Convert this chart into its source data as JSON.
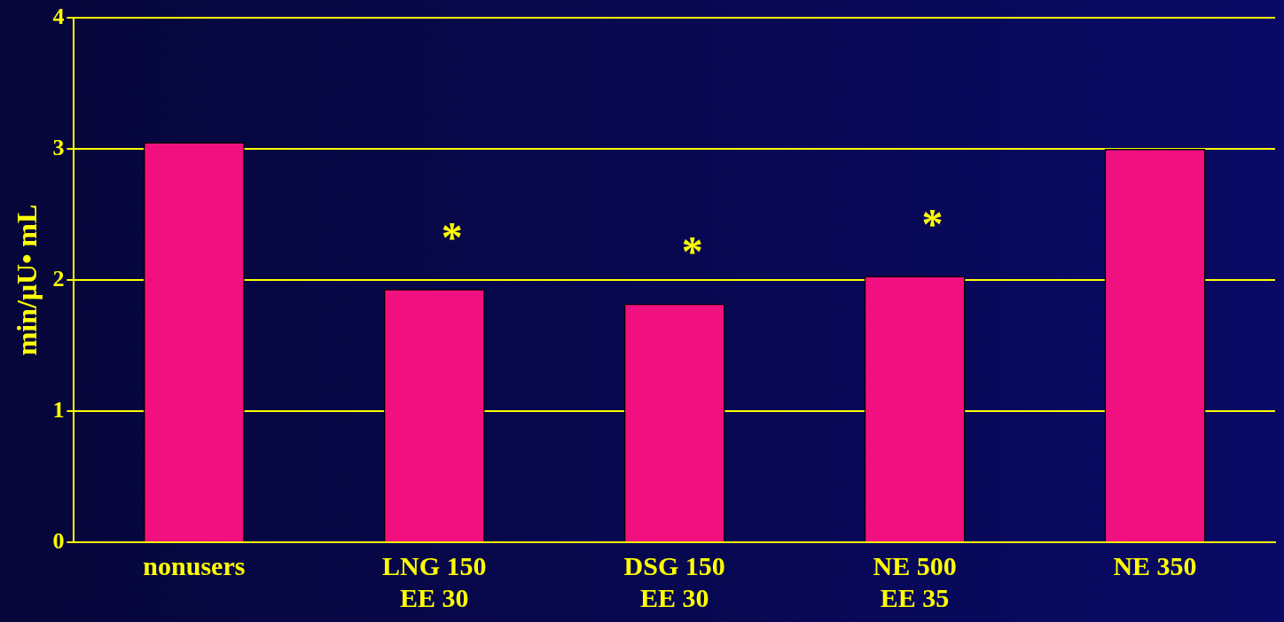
{
  "chart_data": {
    "type": "bar",
    "ylabel": "min/μU• mL",
    "categories": [
      "nonusers",
      "LNG 150\nEE 30",
      "DSG 150\nEE 30",
      "NE 500\nEE 35",
      "NE 350"
    ],
    "values": [
      3.05,
      1.93,
      1.82,
      2.03,
      3.0
    ],
    "color": "#f0107f",
    "ylim": [
      0,
      4
    ],
    "yticks": [
      0,
      1,
      2,
      3,
      4
    ],
    "grid": "y",
    "legend": false,
    "annotations": [
      {
        "text": "*",
        "x": "LNG 150\nEE 30",
        "y": 1.93
      },
      {
        "text": "*",
        "x": "DSG 150\nEE 30",
        "y": 1.82
      },
      {
        "text": "*",
        "x": "NE 500\nEE 35",
        "y": 2.03
      }
    ]
  }
}
